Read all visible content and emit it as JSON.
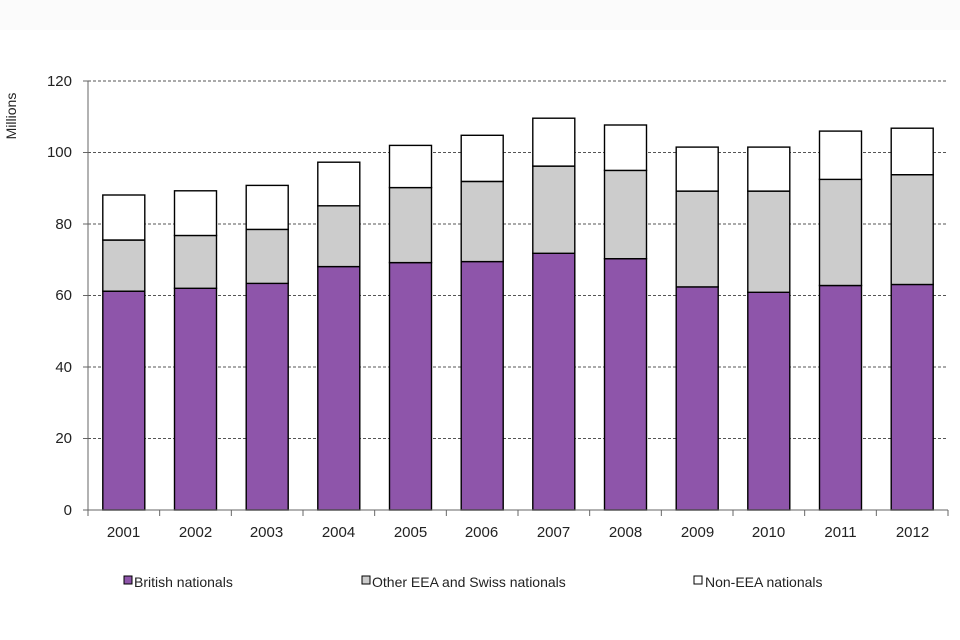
{
  "chart_data": {
    "type": "bar",
    "stacked": true,
    "title": "",
    "xlabel": "",
    "ylabel": "Millions",
    "ylim": [
      0,
      120
    ],
    "yticks": [
      "0",
      "20",
      "40",
      "60",
      "80",
      "100",
      "120"
    ],
    "grid": "horizontal dashed",
    "legend_position": "bottom",
    "categories": [
      "2001",
      "2002",
      "2003",
      "2004",
      "2005",
      "2006",
      "2007",
      "2008",
      "2009",
      "2010",
      "2011",
      "2012"
    ],
    "series": [
      {
        "name": "British nationals",
        "color": "#8e55aa",
        "values": [
          61.2,
          62.0,
          63.4,
          68.1,
          69.2,
          69.5,
          71.8,
          70.3,
          62.4,
          60.9,
          62.8,
          63.1
        ]
      },
      {
        "name": "Other EEA and Swiss nationals",
        "color": "#cccccc",
        "values": [
          14.3,
          14.8,
          15.1,
          17.0,
          21.0,
          22.4,
          24.4,
          24.7,
          26.8,
          28.3,
          29.7,
          30.7
        ]
      },
      {
        "name": "Non-EEA nationals",
        "color": "#ffffff",
        "values": [
          12.6,
          12.5,
          12.3,
          12.2,
          11.8,
          12.9,
          13.4,
          12.7,
          12.3,
          12.3,
          13.5,
          13.0
        ]
      }
    ]
  }
}
